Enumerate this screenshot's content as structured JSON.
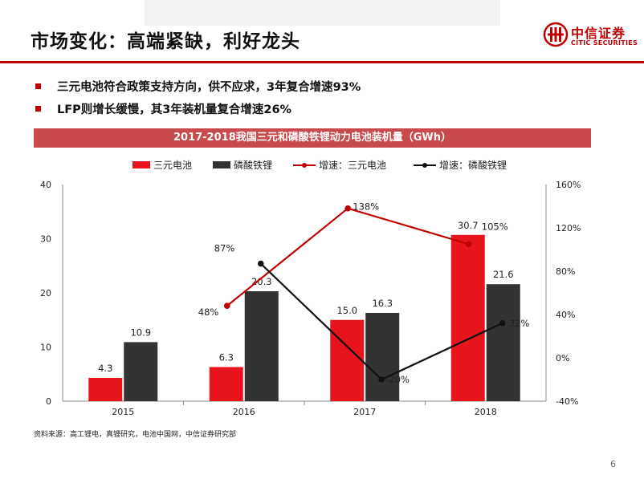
{
  "slide": {
    "title": "市场变化：高端紧缺，利好龙头",
    "bullets": [
      "三元电池符合政策支持方向，供不应求，3年复合增速93%",
      "LFP则增长缓慢，其3年装机量复合增速26%"
    ],
    "source": "资料来源：高工锂电，真锂研究，电池中国网，中信证券研究部",
    "page_number": "6"
  },
  "logo": {
    "cn": "中信证券",
    "en": "CITIC SECURITIES"
  },
  "colors": {
    "accent": "#c00000",
    "ncm": "#e8141c",
    "lfp": "#333333"
  },
  "chart_data": {
    "type": "bar",
    "title": "2017-2018我国三元和磷酸铁锂动力电池装机量（GWh）",
    "categories": [
      "2015",
      "2016",
      "2017",
      "2018"
    ],
    "series": [
      {
        "name": "三元电池",
        "type": "bar",
        "axis": "left",
        "values": [
          4.3,
          6.3,
          15.0,
          30.7
        ],
        "labels": [
          "4.3",
          "6.3",
          "15.0",
          "30.7"
        ],
        "color": "#e8141c"
      },
      {
        "name": "磷酸铁锂",
        "type": "bar",
        "axis": "left",
        "values": [
          10.9,
          20.3,
          16.3,
          21.6
        ],
        "labels": [
          "10.9",
          "20.3",
          "16.3",
          "21.6"
        ],
        "color": "#333333"
      },
      {
        "name": "增速：三元电池",
        "type": "line",
        "axis": "right",
        "values": [
          null,
          48,
          138,
          105
        ],
        "labels": [
          "",
          "48%",
          "138%",
          "105%"
        ],
        "color": "#c00000"
      },
      {
        "name": "增速：磷酸铁锂",
        "type": "line",
        "axis": "right",
        "values": [
          null,
          87,
          -20,
          32
        ],
        "labels": [
          "",
          "87%",
          "-20%",
          "32%"
        ],
        "color": "#111111"
      }
    ],
    "y_left": {
      "min": 0,
      "max": 40,
      "ticks": [
        "0",
        "10",
        "20",
        "30",
        "40"
      ]
    },
    "y_right": {
      "min": -40,
      "max": 160,
      "ticks": [
        "-40%",
        "0%",
        "40%",
        "80%",
        "120%",
        "160%"
      ]
    },
    "grid": false,
    "legend_position": "top"
  }
}
